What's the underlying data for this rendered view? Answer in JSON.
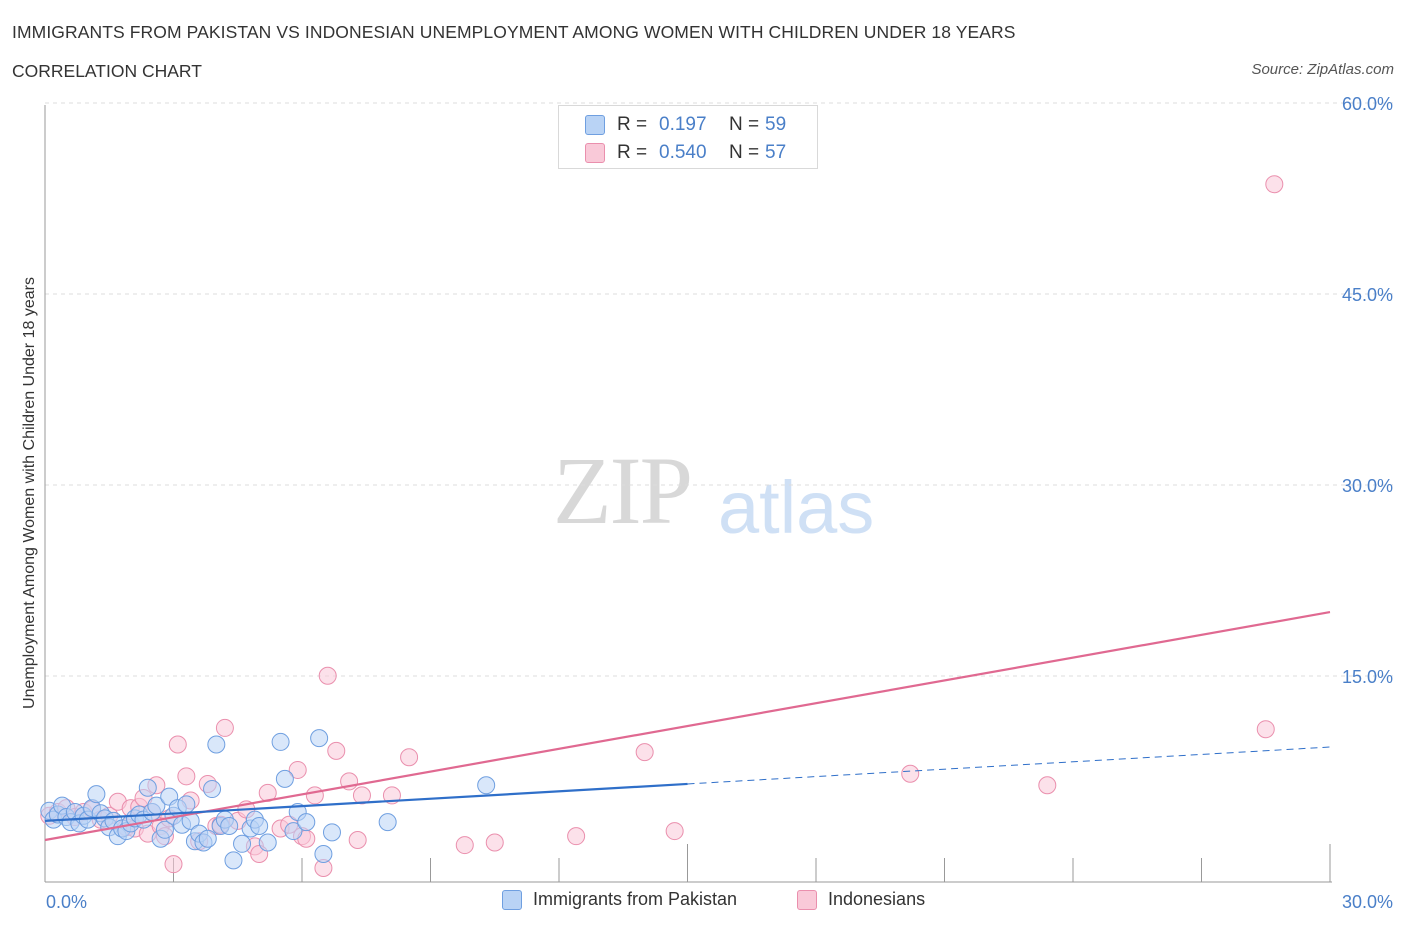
{
  "header": {
    "title": "IMMIGRANTS FROM PAKISTAN VS INDONESIAN UNEMPLOYMENT AMONG WOMEN WITH CHILDREN UNDER 18 YEARS",
    "subtitle": "CORRELATION CHART",
    "source": "Source: ZipAtlas.com"
  },
  "watermark": {
    "zip": "ZIP",
    "atlas": "atlas"
  },
  "legend": {
    "r_label": "R =",
    "n_label": "N =",
    "series": [
      {
        "r": "0.197",
        "n": "59"
      },
      {
        "r": "0.540",
        "n": "57"
      }
    ]
  },
  "colors": {
    "pakistan_fill": "#b9d3f5",
    "pakistan_stroke": "#6f9fe0",
    "pakistan_line": "#2f6fc9",
    "indonesian_fill": "#f9c9d8",
    "indonesian_stroke": "#ea8fad",
    "indonesian_line": "#e06991",
    "tick_text": "#4a7fc8",
    "grid": "#dddddd"
  },
  "chart_data": {
    "type": "scatter",
    "title": "IMMIGRANTS FROM PAKISTAN VS INDONESIAN UNEMPLOYMENT AMONG WOMEN WITH CHILDREN UNDER 18 YEARS",
    "xlabel": "",
    "ylabel": "Unemployment Among Women with Children Under 18 years",
    "xlim": [
      0,
      30
    ],
    "ylim": [
      0,
      60
    ],
    "x_tick_labels": [
      "0.0%",
      "30.0%"
    ],
    "y_ticks": [
      15,
      30,
      45,
      60
    ],
    "y_tick_labels": [
      "15.0%",
      "30.0%",
      "45.0%",
      "60.0%"
    ],
    "grid": true,
    "legend_placement": "bottom",
    "series": [
      {
        "name": "Immigrants from Pakistan",
        "r": 0.197,
        "n": 59,
        "trend": {
          "x": [
            0,
            15
          ],
          "y": [
            4.8,
            7.7
          ]
        },
        "trend_extension": {
          "x": [
            15,
            30
          ],
          "y": [
            7.7,
            10.6
          ]
        },
        "points": [
          [
            0.1,
            5.6
          ],
          [
            0.2,
            4.9
          ],
          [
            0.3,
            5.3
          ],
          [
            0.4,
            6.0
          ],
          [
            0.5,
            5.1
          ],
          [
            0.6,
            4.7
          ],
          [
            0.7,
            5.5
          ],
          [
            0.8,
            4.6
          ],
          [
            0.9,
            5.2
          ],
          [
            1.0,
            4.9
          ],
          [
            1.1,
            5.8
          ],
          [
            1.2,
            6.9
          ],
          [
            1.3,
            5.4
          ],
          [
            1.4,
            5.0
          ],
          [
            1.5,
            4.3
          ],
          [
            1.6,
            4.8
          ],
          [
            1.7,
            3.6
          ],
          [
            1.8,
            4.2
          ],
          [
            1.9,
            4.0
          ],
          [
            2.0,
            4.6
          ],
          [
            2.1,
            5.0
          ],
          [
            2.2,
            5.3
          ],
          [
            2.3,
            4.9
          ],
          [
            2.4,
            7.4
          ],
          [
            2.5,
            5.5
          ],
          [
            2.6,
            6.0
          ],
          [
            2.7,
            3.4
          ],
          [
            2.8,
            4.1
          ],
          [
            2.9,
            6.7
          ],
          [
            3.0,
            5.2
          ],
          [
            3.1,
            5.8
          ],
          [
            3.2,
            4.5
          ],
          [
            3.3,
            6.1
          ],
          [
            3.4,
            4.8
          ],
          [
            3.5,
            3.2
          ],
          [
            3.6,
            3.8
          ],
          [
            3.7,
            3.1
          ],
          [
            3.8,
            3.4
          ],
          [
            3.9,
            7.3
          ],
          [
            4.0,
            10.8
          ],
          [
            4.1,
            4.4
          ],
          [
            4.2,
            4.9
          ],
          [
            4.3,
            4.4
          ],
          [
            4.4,
            1.7
          ],
          [
            4.6,
            3.0
          ],
          [
            4.8,
            4.2
          ],
          [
            4.9,
            4.9
          ],
          [
            5.0,
            4.4
          ],
          [
            5.2,
            3.1
          ],
          [
            5.5,
            11.0
          ],
          [
            5.6,
            8.1
          ],
          [
            5.8,
            4.0
          ],
          [
            5.9,
            5.5
          ],
          [
            6.1,
            4.7
          ],
          [
            6.4,
            11.3
          ],
          [
            6.5,
            2.2
          ],
          [
            6.7,
            3.9
          ],
          [
            8.0,
            4.7
          ],
          [
            10.3,
            7.6
          ]
        ]
      },
      {
        "name": "Indonesians",
        "r": 0.54,
        "n": 57,
        "trend": {
          "x": [
            0,
            30
          ],
          "y": [
            3.3,
            21.2
          ]
        },
        "points": [
          [
            0.1,
            5.2
          ],
          [
            0.3,
            5.5
          ],
          [
            0.5,
            5.8
          ],
          [
            0.7,
            5.1
          ],
          [
            0.9,
            5.5
          ],
          [
            1.1,
            5.7
          ],
          [
            1.3,
            4.9
          ],
          [
            1.5,
            5.2
          ],
          [
            1.7,
            6.3
          ],
          [
            1.9,
            4.3
          ],
          [
            2.0,
            5.8
          ],
          [
            2.1,
            4.2
          ],
          [
            2.2,
            5.9
          ],
          [
            2.3,
            6.6
          ],
          [
            2.4,
            3.8
          ],
          [
            2.5,
            5.5
          ],
          [
            2.6,
            7.6
          ],
          [
            2.7,
            4.4
          ],
          [
            2.8,
            3.6
          ],
          [
            2.9,
            5.0
          ],
          [
            3.0,
            1.4
          ],
          [
            3.1,
            10.8
          ],
          [
            3.3,
            8.3
          ],
          [
            3.4,
            6.4
          ],
          [
            3.6,
            3.2
          ],
          [
            3.8,
            7.7
          ],
          [
            4.0,
            4.4
          ],
          [
            4.1,
            4.5
          ],
          [
            4.2,
            12.1
          ],
          [
            4.5,
            4.8
          ],
          [
            4.7,
            5.7
          ],
          [
            4.9,
            2.8
          ],
          [
            5.0,
            2.2
          ],
          [
            5.2,
            7.0
          ],
          [
            5.5,
            4.2
          ],
          [
            5.7,
            4.5
          ],
          [
            5.9,
            8.8
          ],
          [
            6.0,
            3.6
          ],
          [
            6.1,
            3.4
          ],
          [
            6.3,
            6.8
          ],
          [
            6.5,
            1.1
          ],
          [
            6.6,
            16.2
          ],
          [
            6.8,
            10.3
          ],
          [
            7.1,
            7.9
          ],
          [
            7.3,
            3.3
          ],
          [
            7.4,
            6.8
          ],
          [
            8.1,
            6.8
          ],
          [
            8.5,
            9.8
          ],
          [
            9.8,
            2.9
          ],
          [
            10.5,
            3.1
          ],
          [
            12.4,
            3.6
          ],
          [
            14.0,
            10.2
          ],
          [
            14.7,
            4.0
          ],
          [
            20.2,
            8.5
          ],
          [
            23.4,
            7.6
          ],
          [
            28.5,
            12.0
          ],
          [
            28.7,
            54.8
          ]
        ]
      }
    ]
  }
}
